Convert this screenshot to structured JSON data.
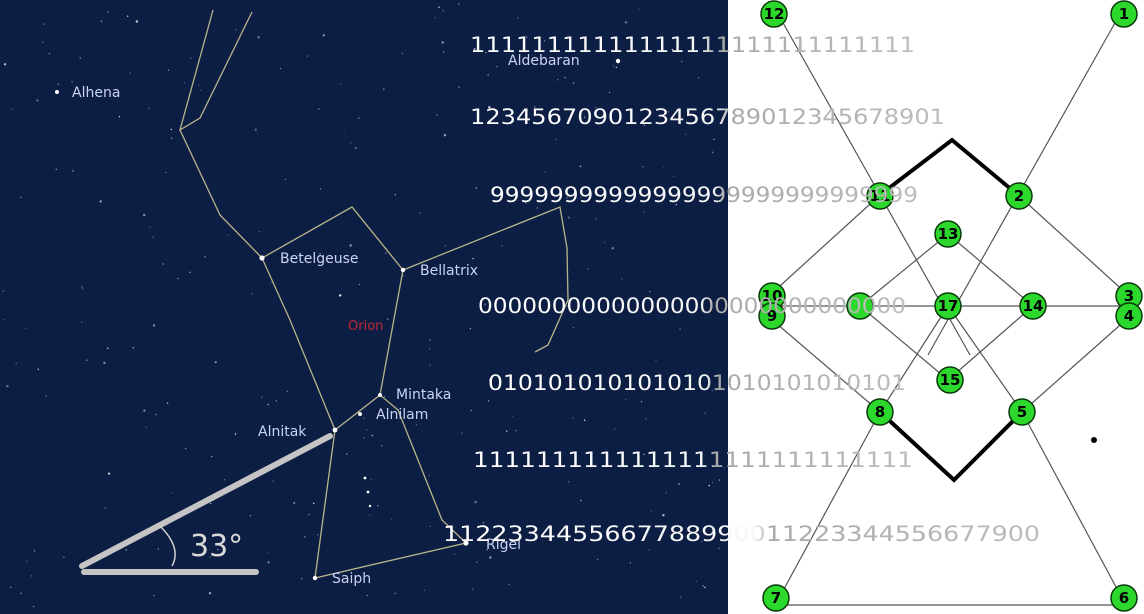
{
  "star_chart": {
    "background_color": "#0d1e44",
    "line_color": "#b8b48a",
    "constellation_name": "Orion",
    "constellation_color": "#c0283a",
    "stars": [
      {
        "name": "Alhena"
      },
      {
        "name": "Aldebaran"
      },
      {
        "name": "Betelgeuse"
      },
      {
        "name": "Bellatrix"
      },
      {
        "name": "Mintaka"
      },
      {
        "name": "Alnilam"
      },
      {
        "name": "Alnitak"
      },
      {
        "name": "Rigel"
      },
      {
        "name": "Saiph"
      }
    ],
    "angle_annotation": "33°"
  },
  "digit_rows": [
    "11111111111111111111111111111",
    "1234567090123456789012345678901",
    "99999999999999999999999999999",
    "00000000000000000000000000000",
    "0101010101010101010101010101",
    "1111111111111111111111111111",
    "1122334455667788990011223344556677900"
  ],
  "graph": {
    "node_color": "#2bd82b",
    "nodes": [
      "12",
      "1",
      "2",
      "13",
      "10",
      "9",
      "11",
      "17",
      "14",
      "3",
      "4",
      "15",
      "8",
      "5",
      "7",
      "6"
    ]
  }
}
